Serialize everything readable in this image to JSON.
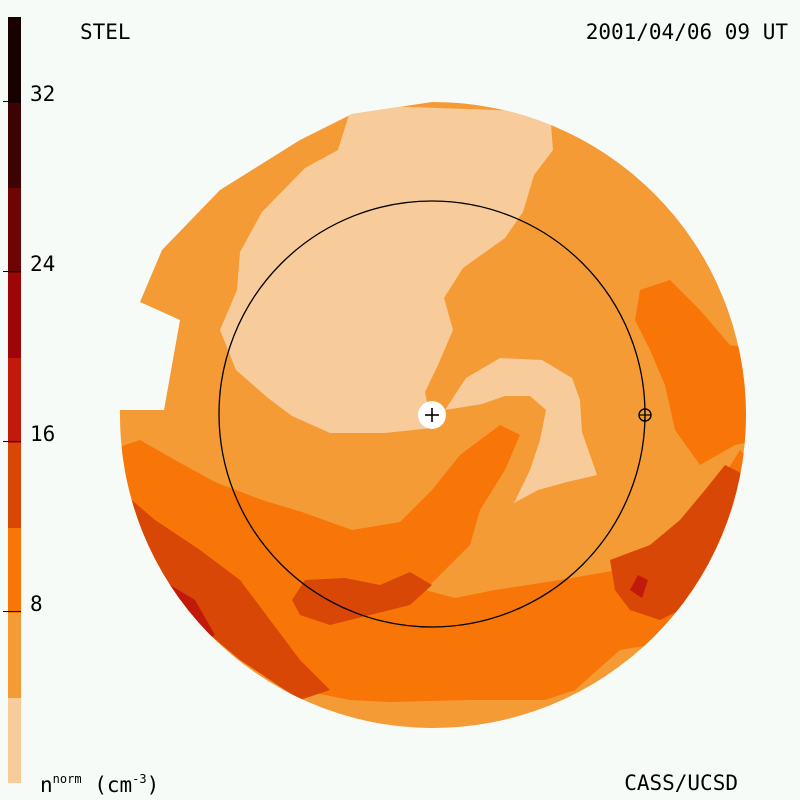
{
  "header": {
    "left_label": "STEL",
    "right_label": "2001/04/06 09 UT"
  },
  "footer": {
    "credit": "CASS/UCSD",
    "unit_base": "n",
    "unit_super": "norm",
    "unit_paren": "(cm",
    "unit_exp": "-3",
    "unit_close": ")"
  },
  "colorbar": {
    "ticks": [
      "32",
      "24",
      "16",
      "8"
    ],
    "tick_values": [
      32,
      24,
      16,
      8
    ],
    "range": [
      0,
      36
    ],
    "levels": [
      {
        "from": 0,
        "to": 4,
        "color": "#f7cb9a"
      },
      {
        "from": 4,
        "to": 8,
        "color": "#f59b35"
      },
      {
        "from": 8,
        "to": 12,
        "color": "#f87508"
      },
      {
        "from": 12,
        "to": 16,
        "color": "#d84706"
      },
      {
        "from": 16,
        "to": 20,
        "color": "#c21a0a"
      },
      {
        "from": 20,
        "to": 24,
        "color": "#9c0606"
      },
      {
        "from": 24,
        "to": 28,
        "color": "#6e0404"
      },
      {
        "from": 28,
        "to": 32,
        "color": "#3f0202"
      },
      {
        "from": 32,
        "to": 36,
        "color": "#170101"
      }
    ]
  },
  "markers": {
    "sun": "plus-icon",
    "earth": "circle-plus-icon"
  }
}
